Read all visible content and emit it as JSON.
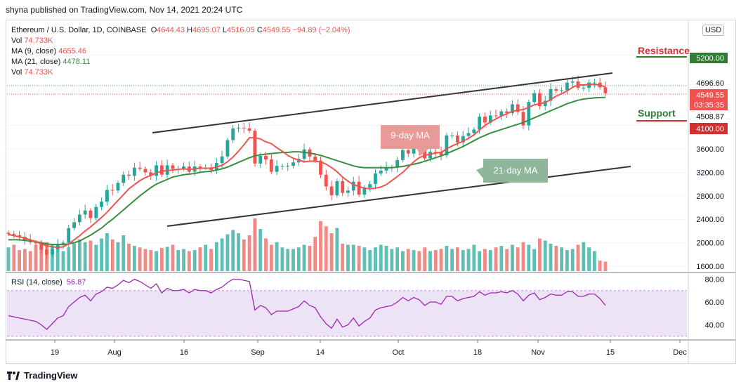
{
  "header": {
    "published": "shyna published on TradingView.com, Nov 14, 2021 20:24 UTC"
  },
  "legend": {
    "symbol": "Ethereum / U.S. Dollar, 1D, COINBASE",
    "o_label": "O",
    "o": "4644.43",
    "h_label": "H",
    "h": "4695.07",
    "l_label": "L",
    "l": "4516.05",
    "c_label": "C",
    "c": "4549.55",
    "change": "−94.89 (−2.04%)",
    "vol_label": "Vol",
    "vol": "74.733K",
    "ma9_label": "MA (9, close)",
    "ma9": "4655.46",
    "ma21_label": "MA (21, close)",
    "ma21": "4478.11",
    "vol2_label": "Vol",
    "vol2": "74.733K"
  },
  "rsi_legend": {
    "label": "RSI (14, close)",
    "value": "56.87"
  },
  "currency_button": "USD",
  "annotations": {
    "resistance": "Resistance",
    "support": "Support",
    "ma9_callout": "9-day MA",
    "ma21_callout": "21-day MA"
  },
  "price_badges": {
    "b4696": "4696.60",
    "b4549": "4549.55",
    "btime": "03:35:35",
    "b5200": "5200.00",
    "b4508": "4508.87",
    "b4100": "4100.00"
  },
  "footer": {
    "brand": "TradingView"
  },
  "colors": {
    "up": "#26a69a",
    "down": "#ef5350",
    "ma9": "#ef5350",
    "ma21": "#388e3c",
    "vol_up": "#5fbfb4",
    "vol_down": "#f08a87",
    "rsi": "#9c27b0",
    "rsi_band": "#ede3f7",
    "resistance": "#d32f2f",
    "support": "#2e7d32",
    "channel": "#333333"
  },
  "chart_data": {
    "type": "candlestick",
    "yticks": [
      1600,
      2000,
      2400,
      2800,
      3200,
      3600,
      4000,
      5200
    ],
    "ytick_labels": [
      "1600.00",
      "2000.00",
      "2400.00",
      "2800.00",
      "3200.00",
      "3600.00",
      "4000.00",
      "5200.00"
    ],
    "rsi_ticks": [
      40,
      60,
      80
    ],
    "rsi_tick_labels": [
      "40.00",
      "60.00",
      "80.00"
    ],
    "xticks": [
      "19",
      "Aug",
      "16",
      "Sep",
      "14",
      "Oct",
      "18",
      "Nov",
      "15",
      "Dec"
    ],
    "resistance_level": 5200,
    "support_level": 4100,
    "candles_close": [
      2150,
      2130,
      2100,
      2050,
      2010,
      1990,
      1880,
      1800,
      1890,
      1960,
      2000,
      2250,
      2350,
      2480,
      2550,
      2420,
      2610,
      2700,
      2900,
      2890,
      3020,
      3160,
      3140,
      3280,
      3260,
      3200,
      3140,
      3320,
      3160,
      3320,
      3260,
      3260,
      3300,
      3210,
      3300,
      3280,
      3280,
      3240,
      3360,
      3470,
      3750,
      3950,
      3960,
      3950,
      3910,
      3350,
      3480,
      3420,
      3210,
      3310,
      3310,
      3310,
      3370,
      3430,
      3590,
      3470,
      3400,
      3160,
      2960,
      2810,
      3050,
      2850,
      2890,
      3040,
      2820,
      2940,
      3000,
      3180,
      3230,
      3280,
      3290,
      3410,
      3580,
      3520,
      3610,
      3570,
      3440,
      3550,
      3540,
      3490,
      3830,
      3830,
      3710,
      3820,
      3870,
      3930,
      4150,
      4050,
      4170,
      4160,
      4240,
      4210,
      4360,
      4230,
      4000,
      4400,
      4550,
      4330,
      4420,
      4620,
      4590,
      4600,
      4730,
      4750,
      4640,
      4640,
      4730,
      4730,
      4650,
      4549
    ],
    "ma9": [
      2140,
      2120,
      2100,
      2080,
      2050,
      2020,
      1980,
      1950,
      1930,
      1920,
      1930,
      1980,
      2050,
      2120,
      2200,
      2270,
      2350,
      2430,
      2520,
      2620,
      2720,
      2820,
      2920,
      2990,
      3060,
      3110,
      3150,
      3190,
      3220,
      3230,
      3240,
      3250,
      3260,
      3250,
      3260,
      3270,
      3270,
      3270,
      3290,
      3320,
      3380,
      3460,
      3560,
      3670,
      3790,
      3790,
      3770,
      3720,
      3690,
      3620,
      3560,
      3490,
      3440,
      3410,
      3380,
      3390,
      3390,
      3380,
      3340,
      3280,
      3210,
      3120,
      3050,
      2990,
      2960,
      2930,
      2920,
      2930,
      2950,
      2990,
      3060,
      3130,
      3200,
      3290,
      3380,
      3450,
      3490,
      3510,
      3530,
      3540,
      3600,
      3650,
      3690,
      3730,
      3780,
      3840,
      3920,
      4000,
      4060,
      4110,
      4160,
      4200,
      4240,
      4260,
      4270,
      4310,
      4350,
      4370,
      4390,
      4440,
      4500,
      4540,
      4590,
      4650,
      4690,
      4690,
      4700,
      4700,
      4690,
      4655
    ],
    "ma21": [
      2050,
      2050,
      2050,
      2040,
      2030,
      2020,
      2000,
      1980,
      1970,
      1970,
      1970,
      1980,
      2000,
      2030,
      2080,
      2130,
      2190,
      2250,
      2330,
      2400,
      2480,
      2560,
      2640,
      2720,
      2800,
      2870,
      2940,
      3000,
      3040,
      3080,
      3120,
      3140,
      3160,
      3170,
      3180,
      3200,
      3210,
      3220,
      3240,
      3260,
      3290,
      3330,
      3370,
      3410,
      3450,
      3480,
      3500,
      3510,
      3520,
      3530,
      3540,
      3540,
      3550,
      3550,
      3540,
      3530,
      3510,
      3490,
      3460,
      3430,
      3400,
      3370,
      3340,
      3310,
      3290,
      3280,
      3280,
      3280,
      3280,
      3280,
      3280,
      3290,
      3300,
      3320,
      3340,
      3360,
      3390,
      3420,
      3450,
      3480,
      3520,
      3560,
      3600,
      3640,
      3690,
      3740,
      3790,
      3830,
      3870,
      3900,
      3930,
      3960,
      3990,
      4020,
      4050,
      4090,
      4130,
      4170,
      4210,
      4250,
      4290,
      4330,
      4370,
      4400,
      4430,
      4450,
      4460,
      4470,
      4475,
      4478
    ],
    "volume_rel": [
      0.45,
      0.5,
      0.4,
      0.42,
      0.38,
      0.5,
      0.48,
      0.55,
      0.5,
      0.42,
      0.38,
      0.45,
      0.52,
      0.6,
      0.55,
      0.58,
      0.5,
      0.62,
      0.72,
      0.6,
      0.55,
      0.68,
      0.52,
      0.48,
      0.45,
      0.42,
      0.4,
      0.38,
      0.44,
      0.46,
      0.5,
      0.4,
      0.42,
      0.38,
      0.4,
      0.45,
      0.5,
      0.42,
      0.55,
      0.62,
      0.7,
      0.78,
      0.72,
      0.6,
      0.68,
      1.0,
      0.8,
      0.62,
      0.5,
      0.55,
      0.45,
      0.42,
      0.42,
      0.45,
      0.5,
      0.48,
      0.65,
      0.95,
      0.85,
      0.72,
      0.82,
      0.52,
      0.5,
      0.5,
      0.48,
      0.45,
      0.4,
      0.45,
      0.5,
      0.48,
      0.42,
      0.45,
      0.38,
      0.42,
      0.4,
      0.38,
      0.45,
      0.38,
      0.4,
      0.42,
      0.48,
      0.42,
      0.45,
      0.4,
      0.42,
      0.5,
      0.38,
      0.42,
      0.4,
      0.45,
      0.48,
      0.42,
      0.5,
      0.45,
      0.55,
      0.5,
      0.42,
      0.62,
      0.58,
      0.52,
      0.48,
      0.45,
      0.4,
      0.42,
      0.5,
      0.55,
      0.45,
      0.38,
      0.2,
      0.18
    ],
    "rsi": [
      48,
      47,
      46,
      45,
      44,
      43,
      40,
      36,
      41,
      46,
      48,
      56,
      60,
      64,
      66,
      61,
      67,
      69,
      73,
      72,
      75,
      79,
      77,
      80,
      78,
      75,
      72,
      76,
      68,
      72,
      70,
      70,
      71,
      68,
      71,
      70,
      70,
      68,
      71,
      73,
      77,
      80,
      80,
      79,
      78,
      53,
      57,
      55,
      49,
      52,
      52,
      52,
      54,
      56,
      61,
      57,
      55,
      47,
      41,
      37,
      45,
      38,
      40,
      46,
      39,
      43,
      46,
      53,
      55,
      56,
      57,
      60,
      64,
      61,
      64,
      62,
      57,
      60,
      60,
      58,
      65,
      65,
      61,
      63,
      64,
      65,
      69,
      66,
      68,
      68,
      69,
      68,
      70,
      67,
      61,
      66,
      68,
      62,
      64,
      67,
      66,
      66,
      69,
      69,
      65,
      65,
      67,
      67,
      63,
      57
    ]
  }
}
